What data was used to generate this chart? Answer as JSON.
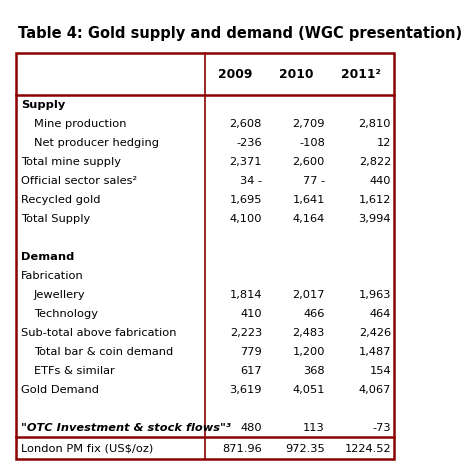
{
  "title": "Table 4: Gold supply and demand (WGC presentation)",
  "col_headers": [
    "",
    "2009",
    "2010",
    "2011²"
  ],
  "rows": [
    {
      "label": "Supply",
      "vals": [
        "",
        "",
        ""
      ],
      "style": "bold_section"
    },
    {
      "label": "Mine production",
      "vals": [
        "2,608",
        "2,709",
        "2,810"
      ],
      "style": "indent1"
    },
    {
      "label": "Net producer hedging",
      "vals": [
        "-236",
        "-108",
        "12"
      ],
      "style": "indent1"
    },
    {
      "label": "Total mine supply",
      "vals": [
        "2,371",
        "2,600",
        "2,822"
      ],
      "style": "normal"
    },
    {
      "label": "Official sector sales²",
      "vals": [
        "34 -",
        "77 -",
        "440"
      ],
      "style": "normal"
    },
    {
      "label": "Recycled gold",
      "vals": [
        "1,695",
        "1,641",
        "1,612"
      ],
      "style": "normal"
    },
    {
      "label": "Total Supply",
      "vals": [
        "4,100",
        "4,164",
        "3,994"
      ],
      "style": "normal"
    },
    {
      "label": "",
      "vals": [
        "",
        "",
        ""
      ],
      "style": "spacer"
    },
    {
      "label": "Demand",
      "vals": [
        "",
        "",
        ""
      ],
      "style": "bold_section"
    },
    {
      "label": "Fabrication",
      "vals": [
        "",
        "",
        ""
      ],
      "style": "normal"
    },
    {
      "label": "Jewellery",
      "vals": [
        "1,814",
        "2,017",
        "1,963"
      ],
      "style": "indent1"
    },
    {
      "label": "Technology",
      "vals": [
        "410",
        "466",
        "464"
      ],
      "style": "indent1"
    },
    {
      "label": "Sub-total above fabrication",
      "vals": [
        "2,223",
        "2,483",
        "2,426"
      ],
      "style": "normal"
    },
    {
      "label": "Total bar & coin demand",
      "vals": [
        "779",
        "1,200",
        "1,487"
      ],
      "style": "indent1"
    },
    {
      "label": "ETFs & similar",
      "vals": [
        "617",
        "368",
        "154"
      ],
      "style": "indent1"
    },
    {
      "label": "Gold Demand",
      "vals": [
        "3,619",
        "4,051",
        "4,067"
      ],
      "style": "normal"
    },
    {
      "label": "",
      "vals": [
        "",
        "",
        ""
      ],
      "style": "spacer"
    },
    {
      "label": "\"OTC Investment & stock flows\"³",
      "vals": [
        "480",
        "113",
        "-73"
      ],
      "style": "bold_italic"
    }
  ],
  "footer": {
    "label": "London PM fix (US$/oz)",
    "vals": [
      "871.96",
      "972.35",
      "1224.52"
    ]
  },
  "border_color": "#8B0000",
  "title_fontsize": 10.5,
  "body_fontsize": 8.2,
  "header_fontsize": 8.8
}
